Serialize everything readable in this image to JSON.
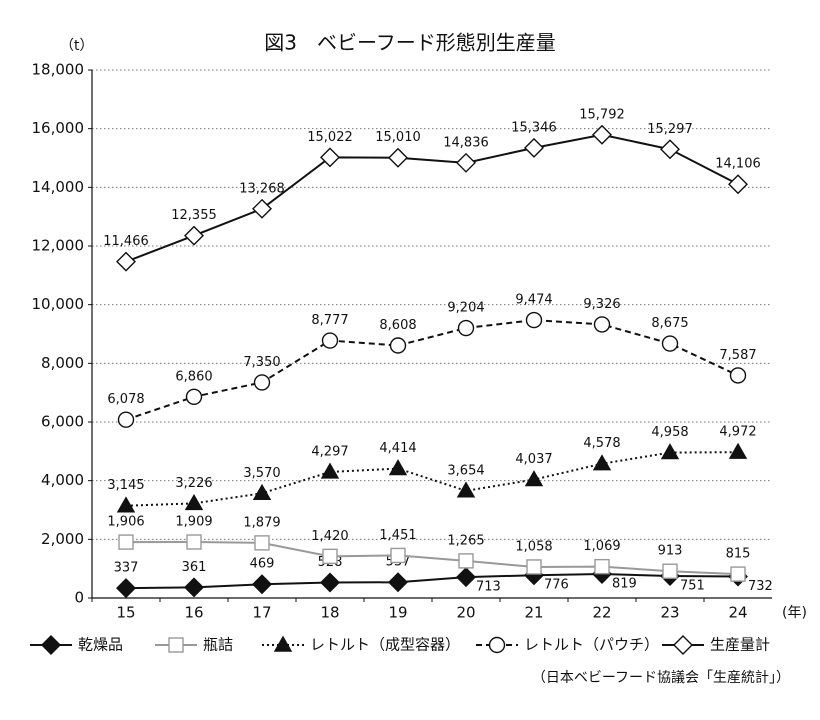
{
  "chart_data": {
    "type": "line",
    "title": "図3　ベビーフード形態別生産量",
    "y_unit": "（t）",
    "x_unit": "(年)",
    "source": "（日本ベビーフード協議会「生産統計」）",
    "categories": [
      "15",
      "16",
      "17",
      "18",
      "19",
      "20",
      "21",
      "22",
      "23",
      "24"
    ],
    "ylim": [
      0,
      18000
    ],
    "yticks": [
      0,
      {
        "value": 2000,
        "label": "2,000"
      },
      {
        "value": 4000,
        "label": "4,000"
      },
      {
        "value": 6000,
        "label": "6,000"
      },
      {
        "value": 8000,
        "label": "8,000"
      },
      {
        "value": 10000,
        "label": "10,000"
      },
      {
        "value": 12000,
        "label": "12,000"
      },
      {
        "value": 14000,
        "label": "14,000"
      },
      {
        "value": 16000,
        "label": "16,000"
      },
      {
        "value": 18000,
        "label": "18,000"
      }
    ],
    "grid": true,
    "series": [
      {
        "name": "乾燥品",
        "color": "#111111",
        "marker": "diamond",
        "marker_fill": "filled",
        "line_style": "solid",
        "values": [
          337,
          361,
          469,
          528,
          537,
          713,
          776,
          819,
          751,
          732
        ],
        "value_labels": [
          "337",
          "361",
          "469",
          "528",
          "537",
          "713",
          "776",
          "819",
          "751",
          "732"
        ]
      },
      {
        "name": "瓶詰",
        "color": "#999999",
        "marker": "square",
        "marker_fill": "open",
        "line_style": "solid",
        "values": [
          1906,
          1909,
          1879,
          1420,
          1451,
          1265,
          1058,
          1069,
          913,
          815
        ],
        "value_labels": [
          "1,906",
          "1,909",
          "1,879",
          "1,420",
          "1,451",
          "1,265",
          "1,058",
          "1,069",
          "913",
          "815"
        ]
      },
      {
        "name": "レトルト（成型容器）",
        "color": "#111111",
        "marker": "triangle",
        "marker_fill": "filled",
        "line_style": "dotted",
        "values": [
          3145,
          3226,
          3570,
          4297,
          4414,
          3654,
          4037,
          4578,
          4958,
          4972
        ],
        "value_labels": [
          "3,145",
          "3,226",
          "3,570",
          "4,297",
          "4,414",
          "3,654",
          "4,037",
          "4,578",
          "4,958",
          "4,972"
        ]
      },
      {
        "name": "レトルト（パウチ）",
        "color": "#111111",
        "marker": "circle",
        "marker_fill": "open",
        "line_style": "dashed",
        "values": [
          6078,
          6860,
          7350,
          8777,
          8608,
          9204,
          9474,
          9326,
          8675,
          7587
        ],
        "value_labels": [
          "6,078",
          "6,860",
          "7,350",
          "8,777",
          "8,608",
          "9,204",
          "9,474",
          "9,326",
          "8,675",
          "7,587"
        ]
      },
      {
        "name": "生産量計",
        "color": "#111111",
        "marker": "diamond",
        "marker_fill": "open",
        "line_style": "solid",
        "values": [
          11466,
          12355,
          13268,
          15022,
          15010,
          14836,
          15346,
          15792,
          15297,
          14106
        ],
        "value_labels": [
          "11,466",
          "12,355",
          "13,268",
          "15,022",
          "15,010",
          "14,836",
          "15,346",
          "15,792",
          "15,297",
          "14,106"
        ]
      }
    ]
  }
}
